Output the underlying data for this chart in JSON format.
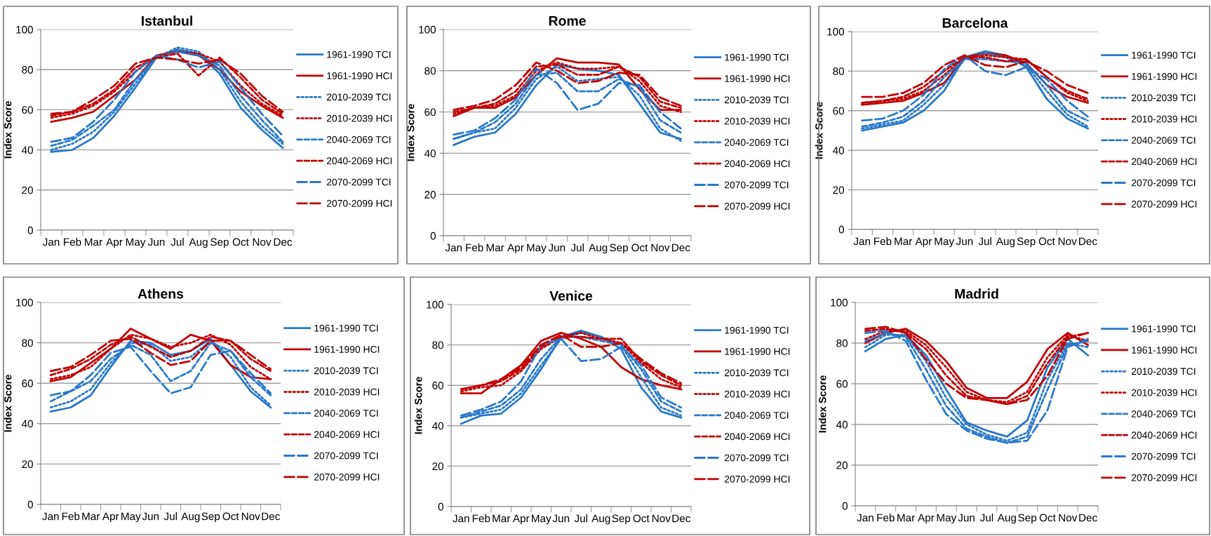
{
  "chart_data": [
    {
      "type": "line",
      "title": "Istanbul",
      "ylabel": "Index Score",
      "categories": [
        "Jan",
        "Feb",
        "Mar",
        "Apr",
        "May",
        "Jun",
        "Jul",
        "Aug",
        "Sep",
        "Oct",
        "Nov",
        "Dec"
      ],
      "ylim": [
        0,
        100
      ],
      "yticks": [
        0,
        20,
        40,
        60,
        80,
        100
      ],
      "grid": "y",
      "legend": "right",
      "series": [
        {
          "name": "1961-1990 TCI",
          "color": "#2878c8",
          "line_style": "solid",
          "values": [
            39,
            40,
            46,
            57,
            71,
            86,
            90,
            88,
            78,
            61,
            50,
            41
          ]
        },
        {
          "name": "1961-1990 HCI",
          "color": "#c00000",
          "line_style": "solid",
          "values": [
            54,
            56,
            59,
            67,
            75,
            87,
            89,
            87,
            80,
            69,
            62,
            56
          ]
        },
        {
          "name": "2010-2039 TCI",
          "color": "#2878c8",
          "line_style": "dotted",
          "values": [
            40,
            43,
            49,
            59,
            73,
            86,
            91,
            89,
            80,
            64,
            52,
            43
          ]
        },
        {
          "name": "2010-2039 HCI",
          "color": "#c00000",
          "line_style": "dotted",
          "values": [
            56,
            58,
            62,
            69,
            79,
            87,
            89,
            88,
            84,
            72,
            63,
            57
          ]
        },
        {
          "name": "2040-2069 TCI",
          "color": "#2878c8",
          "line_style": "dashed",
          "values": [
            42,
            45,
            52,
            60,
            75,
            86,
            89,
            87,
            82,
            67,
            55,
            44
          ]
        },
        {
          "name": "2040-2069 HCI",
          "color": "#c00000",
          "line_style": "dashed",
          "values": [
            57,
            59,
            63,
            70,
            81,
            86,
            88,
            77,
            86,
            76,
            65,
            58
          ]
        },
        {
          "name": "2070-2099 TCI",
          "color": "#2878c8",
          "line_style": "longdash",
          "values": [
            44,
            46,
            54,
            65,
            79,
            87,
            85,
            81,
            84,
            71,
            58,
            47
          ]
        },
        {
          "name": "2070-2099 HCI",
          "color": "#c00000",
          "line_style": "longdash",
          "values": [
            58,
            59,
            65,
            72,
            83,
            86,
            85,
            83,
            85,
            78,
            67,
            59
          ]
        }
      ]
    },
    {
      "type": "line",
      "title": "Rome",
      "ylabel": "Index Score",
      "categories": [
        "Jan",
        "Feb",
        "Mar",
        "Apr",
        "May",
        "Jun",
        "Jul",
        "Aug",
        "Sep",
        "Oct",
        "Nov",
        "Dec"
      ],
      "ylim": [
        0,
        100
      ],
      "yticks": [
        0,
        20,
        40,
        60,
        80,
        100
      ],
      "grid": "y",
      "legend": "right",
      "series": [
        {
          "name": "1961-1990 TCI",
          "color": "#2878c8",
          "line_style": "solid",
          "values": [
            44,
            48,
            50,
            59,
            73,
            83,
            81,
            80,
            78,
            64,
            50,
            47
          ]
        },
        {
          "name": "1961-1990 HCI",
          "color": "#c00000",
          "line_style": "solid",
          "values": [
            58,
            62,
            62,
            67,
            78,
            86,
            84,
            84,
            83,
            71,
            61,
            61
          ]
        },
        {
          "name": "2010-2039 TCI",
          "color": "#2878c8",
          "line_style": "dotted",
          "values": [
            47,
            50,
            52,
            62,
            76,
            82,
            75,
            76,
            77,
            68,
            52,
            46
          ]
        },
        {
          "name": "2010-2039 HCI",
          "color": "#c00000",
          "line_style": "dotted",
          "values": [
            59,
            62,
            63,
            68,
            80,
            84,
            81,
            81,
            82,
            75,
            63,
            60
          ]
        },
        {
          "name": "2040-2069 TCI",
          "color": "#2878c8",
          "line_style": "dashed",
          "values": [
            47,
            50,
            55,
            64,
            78,
            79,
            70,
            70,
            76,
            72,
            56,
            50
          ]
        },
        {
          "name": "2040-2069 HCI",
          "color": "#c00000",
          "line_style": "dashed",
          "values": [
            60,
            62,
            64,
            70,
            82,
            83,
            78,
            78,
            82,
            77,
            65,
            62
          ]
        },
        {
          "name": "2070-2099 TCI",
          "color": "#2878c8",
          "line_style": "longdash",
          "values": [
            49,
            51,
            57,
            66,
            81,
            74,
            61,
            64,
            74,
            73,
            60,
            52
          ]
        },
        {
          "name": "2070-2099 HCI",
          "color": "#c00000",
          "line_style": "longdash",
          "values": [
            61,
            63,
            66,
            73,
            84,
            80,
            74,
            75,
            79,
            78,
            67,
            63
          ]
        }
      ]
    },
    {
      "type": "line",
      "title": "Barcelona",
      "ylabel": "Index Score",
      "categories": [
        "Jan",
        "Feb",
        "Mar",
        "Apr",
        "May",
        "Jun",
        "Jul",
        "Aug",
        "Sep",
        "Oct",
        "Nov",
        "Dec"
      ],
      "ylim": [
        0,
        100
      ],
      "yticks": [
        0,
        20,
        40,
        60,
        80,
        100
      ],
      "grid": "y",
      "legend": "right",
      "series": [
        {
          "name": "1961-1990 TCI",
          "color": "#2878c8",
          "line_style": "solid",
          "values": [
            50,
            52,
            54,
            60,
            70,
            87,
            90,
            88,
            82,
            66,
            56,
            51
          ]
        },
        {
          "name": "1961-1990 HCI",
          "color": "#c00000",
          "line_style": "solid",
          "values": [
            63,
            64,
            65,
            69,
            74,
            87,
            89,
            88,
            84,
            73,
            67,
            64
          ]
        },
        {
          "name": "2010-2039 TCI",
          "color": "#2878c8",
          "line_style": "dotted",
          "values": [
            51,
            53,
            55,
            63,
            73,
            86,
            89,
            87,
            83,
            70,
            58,
            52
          ]
        },
        {
          "name": "2010-2039 HCI",
          "color": "#c00000",
          "line_style": "dotted",
          "values": [
            64,
            65,
            66,
            70,
            78,
            87,
            88,
            87,
            86,
            77,
            69,
            65
          ]
        },
        {
          "name": "2040-2069 TCI",
          "color": "#2878c8",
          "line_style": "dashed",
          "values": [
            52,
            54,
            57,
            65,
            77,
            86,
            86,
            85,
            84,
            73,
            60,
            55
          ]
        },
        {
          "name": "2040-2069 HCI",
          "color": "#c00000",
          "line_style": "dashed",
          "values": [
            64,
            65,
            67,
            72,
            80,
            87,
            87,
            85,
            86,
            77,
            70,
            66
          ]
        },
        {
          "name": "2070-2099 TCI",
          "color": "#2878c8",
          "line_style": "longdash",
          "values": [
            55,
            56,
            60,
            68,
            81,
            88,
            80,
            78,
            82,
            76,
            65,
            57
          ]
        },
        {
          "name": "2070-2099 HCI",
          "color": "#c00000",
          "line_style": "longdash",
          "values": [
            67,
            67,
            69,
            74,
            83,
            88,
            83,
            82,
            85,
            80,
            73,
            69
          ]
        }
      ]
    },
    {
      "type": "line",
      "title": "Athens",
      "ylabel": "Index Score",
      "categories": [
        "Jan",
        "Feb",
        "Mar",
        "Apr",
        "May",
        "Jun",
        "Jul",
        "Aug",
        "Sep",
        "Oct",
        "Nov",
        "Dec"
      ],
      "ylim": [
        0,
        100
      ],
      "yticks": [
        0,
        20,
        40,
        60,
        80,
        100
      ],
      "grid": "y",
      "legend": "right",
      "series": [
        {
          "name": "1961-1990 TCI",
          "color": "#2878c8",
          "line_style": "solid",
          "values": [
            46,
            48,
            54,
            68,
            81,
            80,
            74,
            76,
            82,
            69,
            56,
            48
          ]
        },
        {
          "name": "1961-1990 HCI",
          "color": "#c00000",
          "line_style": "solid",
          "values": [
            61,
            63,
            70,
            77,
            87,
            82,
            77,
            84,
            81,
            69,
            63,
            62
          ]
        },
        {
          "name": "2010-2039 TCI",
          "color": "#2878c8",
          "line_style": "dotted",
          "values": [
            48,
            51,
            57,
            70,
            80,
            79,
            71,
            73,
            81,
            73,
            58,
            49
          ]
        },
        {
          "name": "2010-2039 HCI",
          "color": "#c00000",
          "line_style": "dotted",
          "values": [
            62,
            64,
            68,
            77,
            84,
            82,
            78,
            80,
            84,
            79,
            68,
            62
          ]
        },
        {
          "name": "2040-2069 TCI",
          "color": "#2878c8",
          "line_style": "dashed",
          "values": [
            51,
            56,
            61,
            72,
            79,
            74,
            61,
            66,
            80,
            76,
            63,
            54
          ]
        },
        {
          "name": "2040-2069 HCI",
          "color": "#c00000",
          "line_style": "dashed",
          "values": [
            64,
            67,
            72,
            79,
            83,
            78,
            73,
            76,
            83,
            81,
            72,
            66
          ]
        },
        {
          "name": "2070-2099 TCI",
          "color": "#2878c8",
          "line_style": "longdash",
          "values": [
            54,
            56,
            64,
            75,
            78,
            66,
            55,
            58,
            74,
            76,
            65,
            55
          ]
        },
        {
          "name": "2070-2099 HCI",
          "color": "#c00000",
          "line_style": "longdash",
          "values": [
            66,
            68,
            74,
            81,
            82,
            75,
            69,
            71,
            81,
            81,
            74,
            67
          ]
        }
      ]
    },
    {
      "type": "line",
      "title": "Venice",
      "ylabel": "Index Score",
      "categories": [
        "Jan",
        "Feb",
        "Mar",
        "Apr",
        "May",
        "Jun",
        "Jul",
        "Aug",
        "Sep",
        "Oct",
        "Nov",
        "Dec"
      ],
      "ylim": [
        0,
        100
      ],
      "yticks": [
        0,
        20,
        40,
        60,
        80,
        100
      ],
      "grid": "y",
      "legend": "right",
      "series": [
        {
          "name": "1961-1990 TCI",
          "color": "#2878c8",
          "line_style": "solid",
          "values": [
            41,
            45,
            46,
            54,
            68,
            84,
            87,
            84,
            78,
            59,
            47,
            44
          ]
        },
        {
          "name": "1961-1990 HCI",
          "color": "#c00000",
          "line_style": "solid",
          "values": [
            56,
            56,
            63,
            70,
            82,
            86,
            83,
            79,
            69,
            63,
            60,
            58
          ]
        },
        {
          "name": "2010-2039 TCI",
          "color": "#2878c8",
          "line_style": "dotted",
          "values": [
            44,
            46,
            48,
            56,
            70,
            83,
            86,
            84,
            80,
            64,
            49,
            45
          ]
        },
        {
          "name": "2010-2039 HCI",
          "color": "#c00000",
          "line_style": "dotted",
          "values": [
            57,
            59,
            60,
            67,
            78,
            84,
            86,
            83,
            81,
            71,
            63,
            59
          ]
        },
        {
          "name": "2040-2069 TCI",
          "color": "#2878c8",
          "line_style": "dashed",
          "values": [
            44,
            47,
            50,
            58,
            73,
            84,
            84,
            82,
            80,
            68,
            52,
            47
          ]
        },
        {
          "name": "2040-2069 HCI",
          "color": "#c00000",
          "line_style": "dashed",
          "values": [
            58,
            60,
            62,
            68,
            79,
            84,
            84,
            83,
            83,
            72,
            65,
            60
          ]
        },
        {
          "name": "2070-2099 TCI",
          "color": "#2878c8",
          "line_style": "longdash",
          "values": [
            45,
            48,
            52,
            62,
            80,
            83,
            72,
            73,
            79,
            70,
            54,
            49
          ]
        },
        {
          "name": "2070-2099 HCI",
          "color": "#c00000",
          "line_style": "longdash",
          "values": [
            58,
            60,
            63,
            69,
            80,
            85,
            79,
            79,
            81,
            73,
            66,
            61
          ]
        }
      ]
    },
    {
      "type": "line",
      "title": "Madrid",
      "ylabel": "Index Score",
      "categories": [
        "Jan",
        "Feb",
        "Mar",
        "Apr",
        "May",
        "Jun",
        "Jul",
        "Aug",
        "Sep",
        "Oct",
        "Nov",
        "Dec"
      ],
      "ylim": [
        0,
        100
      ],
      "yticks": [
        0,
        20,
        40,
        60,
        80,
        100
      ],
      "grid": "y",
      "legend": "right",
      "series": [
        {
          "name": "1961-1990 TCI",
          "color": "#2878c8",
          "line_style": "solid",
          "values": [
            76,
            82,
            84,
            74,
            57,
            41,
            37,
            34,
            42,
            68,
            82,
            74
          ]
        },
        {
          "name": "1961-1990 HCI",
          "color": "#c00000",
          "line_style": "solid",
          "values": [
            80,
            85,
            87,
            81,
            71,
            58,
            53,
            53,
            61,
            77,
            85,
            79
          ]
        },
        {
          "name": "2010-2039 TCI",
          "color": "#2878c8",
          "line_style": "dotted",
          "values": [
            78,
            84,
            84,
            71,
            53,
            40,
            35,
            32,
            36,
            62,
            80,
            78
          ]
        },
        {
          "name": "2010-2039 HCI",
          "color": "#c00000",
          "line_style": "dotted",
          "values": [
            82,
            86,
            86,
            79,
            68,
            56,
            52,
            51,
            56,
            73,
            84,
            81
          ]
        },
        {
          "name": "2040-2069 TCI",
          "color": "#2878c8",
          "line_style": "dashed",
          "values": [
            81,
            85,
            83,
            67,
            49,
            38,
            34,
            31,
            34,
            57,
            79,
            81
          ]
        },
        {
          "name": "2040-2069 HCI",
          "color": "#c00000",
          "line_style": "dashed",
          "values": [
            86,
            87,
            85,
            77,
            64,
            54,
            52,
            50,
            54,
            70,
            83,
            85
          ]
        },
        {
          "name": "2070-2099 TCI",
          "color": "#2878c8",
          "line_style": "longdash",
          "values": [
            85,
            86,
            81,
            62,
            45,
            37,
            33,
            31,
            32,
            47,
            78,
            82
          ]
        },
        {
          "name": "2070-2099 HCI",
          "color": "#c00000",
          "line_style": "longdash",
          "values": [
            87,
            88,
            85,
            72,
            60,
            53,
            52,
            50,
            52,
            64,
            82,
            85
          ]
        }
      ]
    }
  ]
}
